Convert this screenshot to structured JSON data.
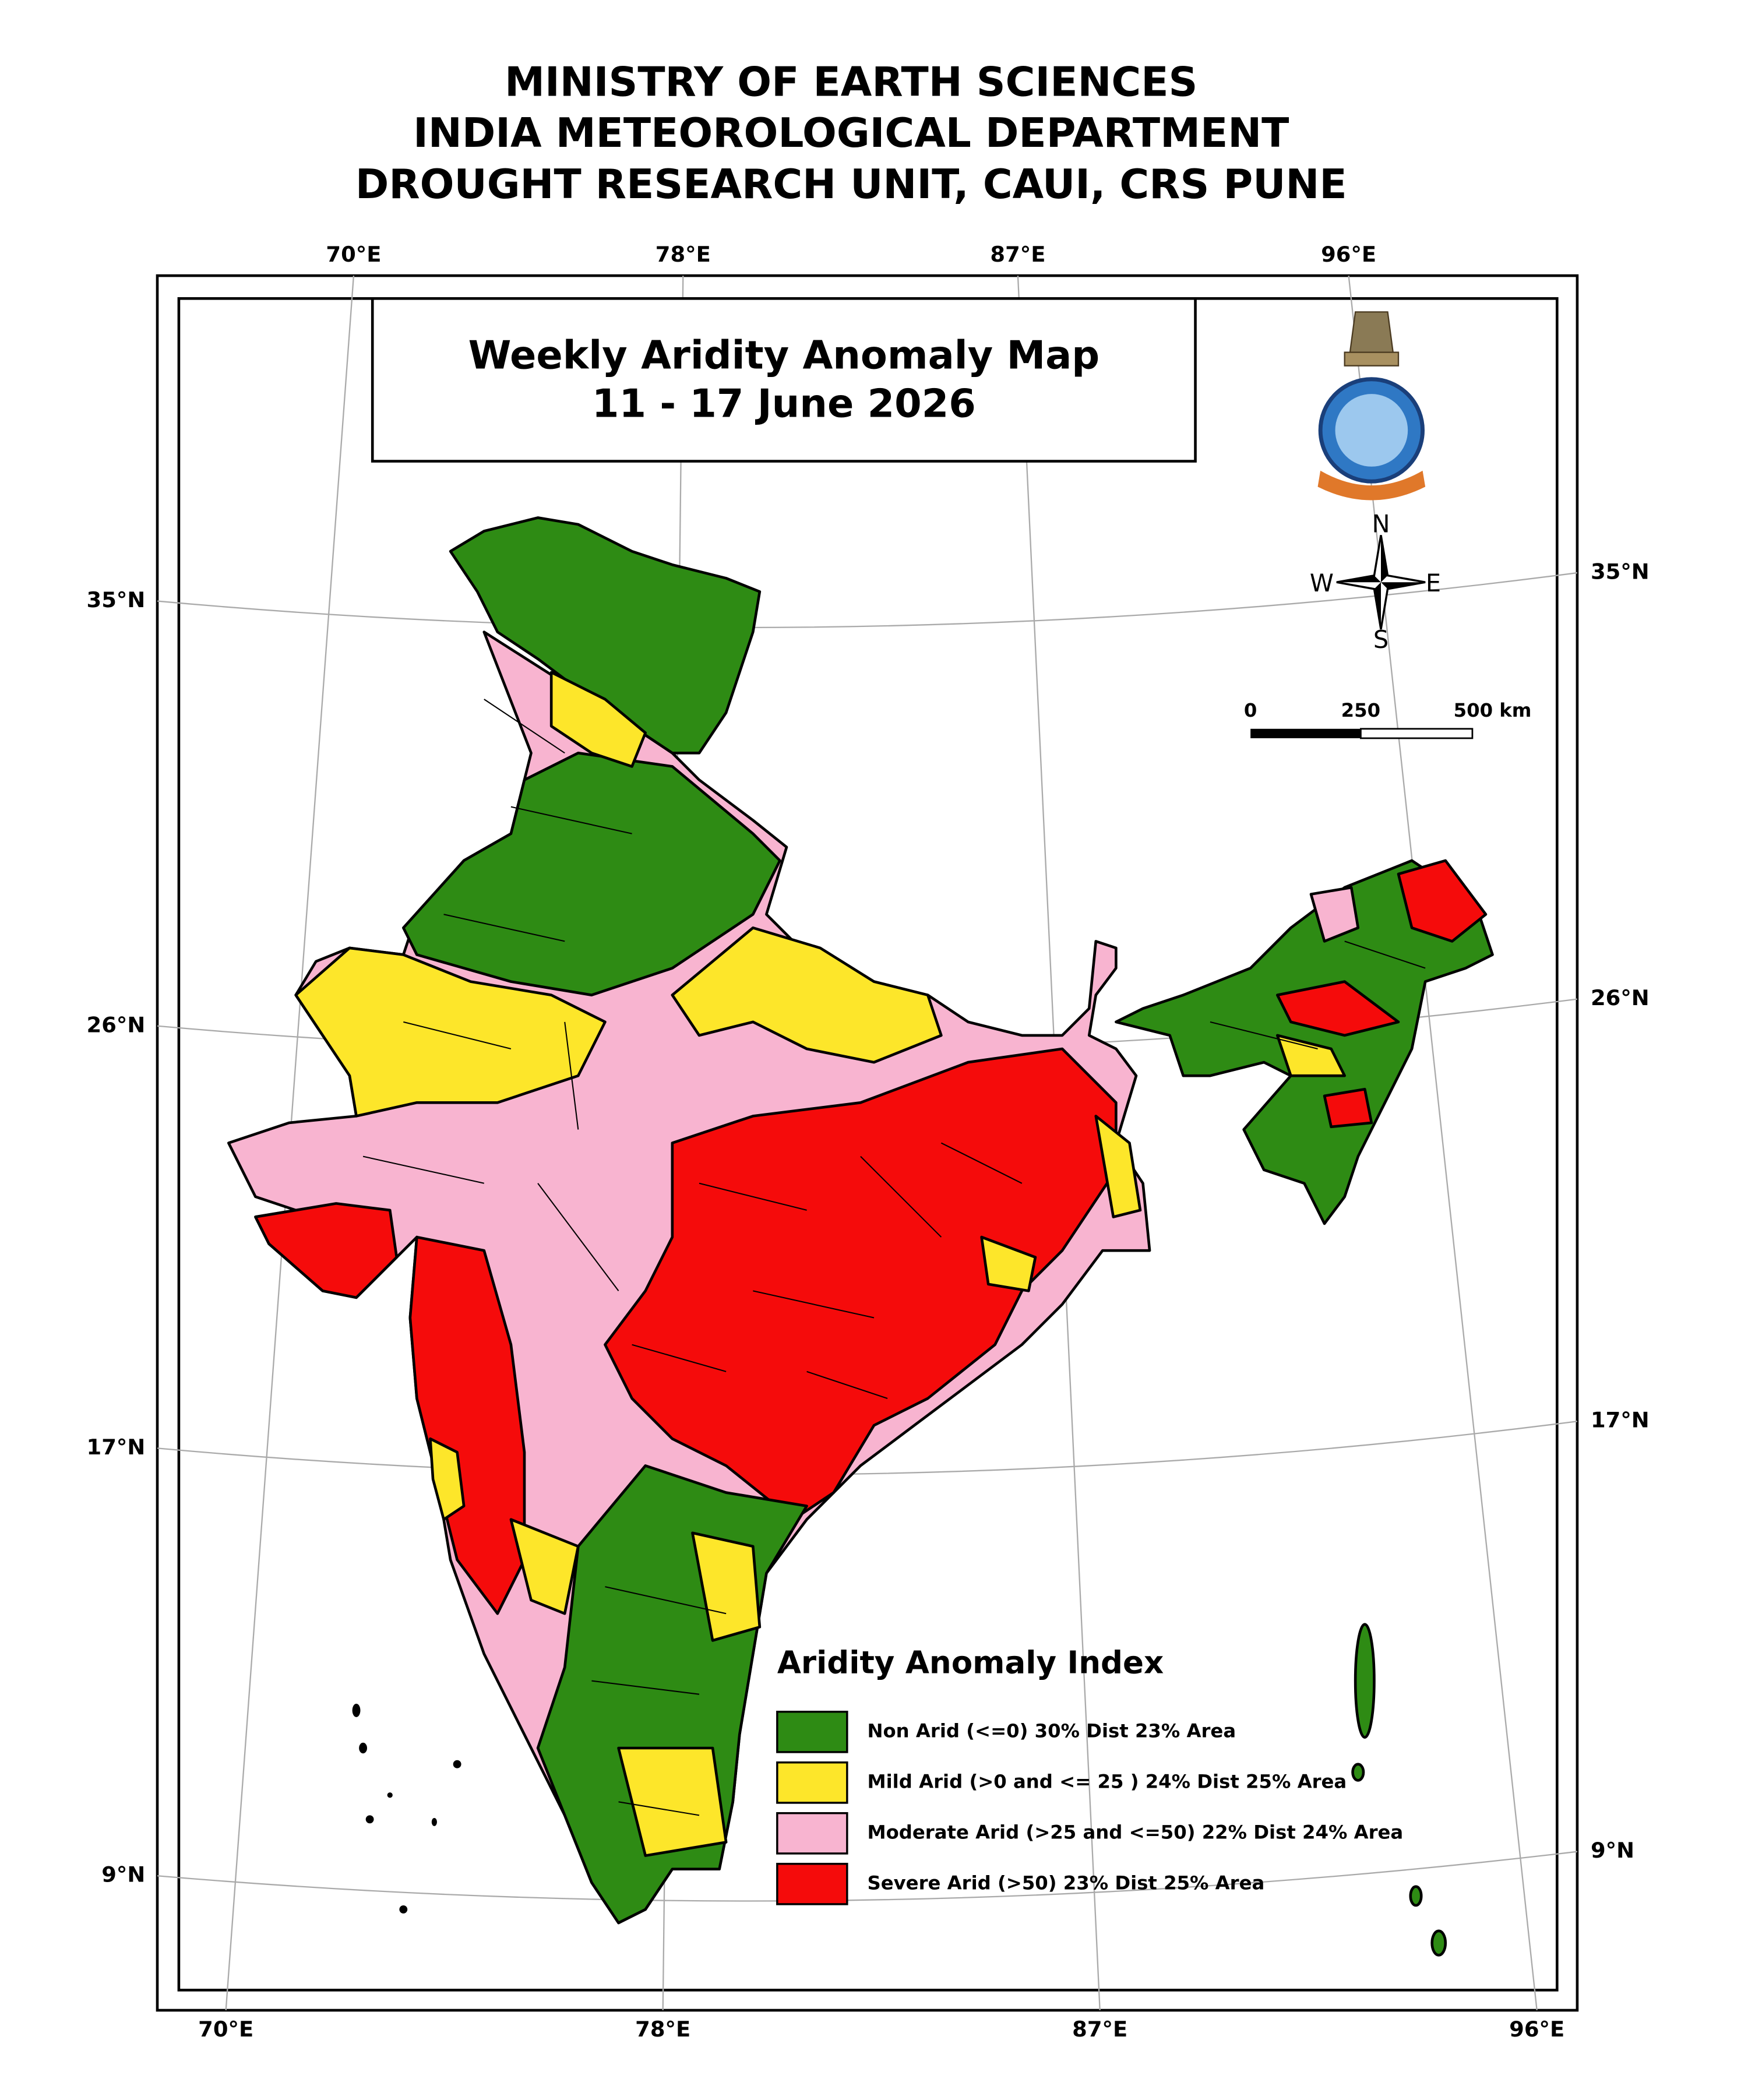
{
  "header": {
    "lines": [
      "MINISTRY OF EARTH SCIENCES",
      "INDIA METEOROLOGICAL DEPARTMENT",
      "DROUGHT RESEARCH UNIT, CAUI, CRS PUNE"
    ]
  },
  "map": {
    "title": "Weekly Aridity Anomaly Map",
    "period": "11 - 17 June 2026",
    "longitude_labels_top": [
      "70°E",
      "78°E",
      "87°E",
      "96°E"
    ],
    "longitude_labels_bottom": [
      "70°E",
      "78°E",
      "87°E",
      "96°E"
    ],
    "latitude_labels_left": [
      "35°N",
      "26°N",
      "17°N",
      "9°N"
    ],
    "latitude_labels_right": [
      "35°N",
      "26°N",
      "17°N",
      "9°N"
    ],
    "compass": {
      "north": "N",
      "south": "S",
      "east": "E",
      "west": "W"
    },
    "scale_labels": [
      "0",
      "250",
      "500 km"
    ]
  },
  "legend": {
    "title": "Aridity Anomaly Index",
    "items": [
      {
        "label": "Non Arid (<=0) 30% Dist 23% Area",
        "color": "#2e8b14"
      },
      {
        "label": "Mild Arid (>0 and <= 25 ) 24% Dist  25% Area",
        "color": "#fde62a"
      },
      {
        "label": "Moderate Arid (>25 and <=50) 22% Dist 24% Area",
        "color": "#f8b4d0"
      },
      {
        "label": "Severe Arid (>50) 23% Dist  25% Area",
        "color": "#f50b0b"
      }
    ]
  }
}
